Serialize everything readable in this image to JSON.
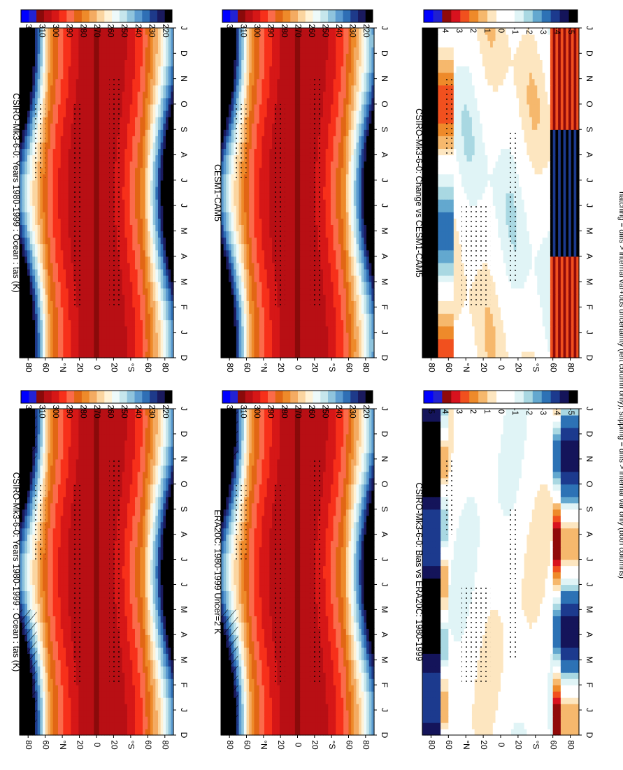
{
  "footnote": "hatching = diffs > internal var+obs uncertainty (left column only); stippling = diffs > internal var only (both columns)",
  "colors": {
    "abs_scale": [
      "#000000",
      "#1a1a5e",
      "#1e3a8a",
      "#2f6fb5",
      "#5b9bd0",
      "#8fc4dd",
      "#c6e6ec",
      "#eefafa",
      "#fff2d6",
      "#fbd5a0",
      "#f4ab62",
      "#ee8a2a",
      "#e26614",
      "#fb6b4a",
      "#f7301a",
      "#d61717",
      "#b80f14",
      "#8a0a0a",
      "#2222d4",
      "#0000ff"
    ],
    "diff_scale": [
      "#000000",
      "#14145a",
      "#1c3a8e",
      "#2d72b5",
      "#63a8cf",
      "#a9d8e2",
      "#e0f4f6",
      "#ffffff",
      "#ffffff",
      "#fde6c0",
      "#f6b86d",
      "#ee8a2a",
      "#f1501e",
      "#d8121e",
      "#900a0a",
      "#2020d0",
      "#0000ff"
    ]
  },
  "chart_data": [
    {
      "type": "heatmap",
      "title": "CSIRO-Mk3-6-0: Years 1980-1999 : Ocean : tas (K)",
      "x": [
        "D",
        "J",
        "F",
        "M",
        "A",
        "M",
        "J",
        "J",
        "A",
        "S",
        "O",
        "N",
        "D",
        "J"
      ],
      "y_ticks": [
        "80",
        "60",
        "°N",
        "20",
        "0",
        "20",
        "°S",
        "60",
        "80"
      ],
      "colorbar_ticks": [
        "320",
        "310",
        "300",
        "290",
        "280",
        "270",
        "260",
        "250",
        "240",
        "230",
        "220"
      ],
      "zrange": [
        215,
        325
      ],
      "equator_value": 300,
      "polar_nh_amp": 47,
      "polar_sh_amp": 40,
      "hatched": true
    },
    {
      "type": "heatmap",
      "title": "ERA20C: 1980-1999 Uncer=2 K",
      "x": [
        "D",
        "J",
        "F",
        "M",
        "A",
        "M",
        "J",
        "J",
        "A",
        "S",
        "O",
        "N",
        "D",
        "J"
      ],
      "y_ticks": [
        "80",
        "60",
        "°N",
        "20",
        "0",
        "20",
        "°S",
        "60",
        "80"
      ],
      "colorbar_ticks": [
        "320",
        "310",
        "300",
        "290",
        "280",
        "270",
        "260",
        "250",
        "240",
        "230",
        "220"
      ],
      "zrange": [
        215,
        325
      ],
      "equator_value": 300,
      "polar_nh_amp": 45,
      "polar_sh_amp": 36,
      "hatched": true
    },
    {
      "type": "heatmap",
      "title": "CSIRO-Mk3-6-0: Bias vs ERA20C: 1980-1999",
      "x": [
        "D",
        "J",
        "F",
        "M",
        "A",
        "M",
        "J",
        "J",
        "A",
        "S",
        "O",
        "N",
        "D",
        "J"
      ],
      "y_ticks": [
        "80",
        "60",
        "°N",
        "20",
        "0",
        "20",
        "°S",
        "60",
        "80"
      ],
      "colorbar_ticks": [
        "5",
        "4",
        "3",
        "2",
        "1",
        "0",
        "-1",
        "-2",
        "-3",
        "-4",
        "-5"
      ],
      "zrange": [
        -5.5,
        5.5
      ]
    },
    {
      "type": "heatmap",
      "title": "CSIRO-Mk3-6-0: Years 1980-1999 : Ocean : tas (K)",
      "x": [
        "D",
        "J",
        "F",
        "M",
        "A",
        "M",
        "J",
        "J",
        "A",
        "S",
        "O",
        "N",
        "D",
        "J"
      ],
      "y_ticks": [
        "80",
        "60",
        "°N",
        "20",
        "0",
        "20",
        "°S",
        "60",
        "80"
      ],
      "colorbar_ticks": [
        "320",
        "310",
        "300",
        "290",
        "280",
        "270",
        "260",
        "250",
        "240",
        "230",
        "220"
      ],
      "zrange": [
        215,
        325
      ],
      "equator_value": 300,
      "polar_nh_amp": 47,
      "polar_sh_amp": 40
    },
    {
      "type": "heatmap",
      "title": "CESM1-CAM5",
      "x": [
        "D",
        "J",
        "F",
        "M",
        "A",
        "M",
        "J",
        "J",
        "A",
        "S",
        "O",
        "N",
        "D",
        "J"
      ],
      "y_ticks": [
        "80",
        "60",
        "°N",
        "20",
        "0",
        "20",
        "°S",
        "60",
        "80"
      ],
      "colorbar_ticks": [
        "320",
        "310",
        "300",
        "290",
        "280",
        "270",
        "260",
        "250",
        "240",
        "230",
        "220"
      ],
      "zrange": [
        215,
        325
      ],
      "equator_value": 300,
      "polar_nh_amp": 44,
      "polar_sh_amp": 34
    },
    {
      "type": "heatmap",
      "title": "CSIRO-Mk3-6-0: Change vs CESM1-CAM5",
      "x": [
        "D",
        "J",
        "F",
        "M",
        "A",
        "M",
        "J",
        "J",
        "A",
        "S",
        "O",
        "N",
        "D",
        "J"
      ],
      "y_ticks": [
        "80",
        "60",
        "°N",
        "20",
        "0",
        "20",
        "°S",
        "60",
        "80"
      ],
      "colorbar_ticks": [
        "5",
        "4",
        "3",
        "2",
        "1",
        "0",
        "-1",
        "-2",
        "-3",
        "-4",
        "-5"
      ],
      "zrange": [
        -5.5,
        5.5
      ]
    }
  ]
}
